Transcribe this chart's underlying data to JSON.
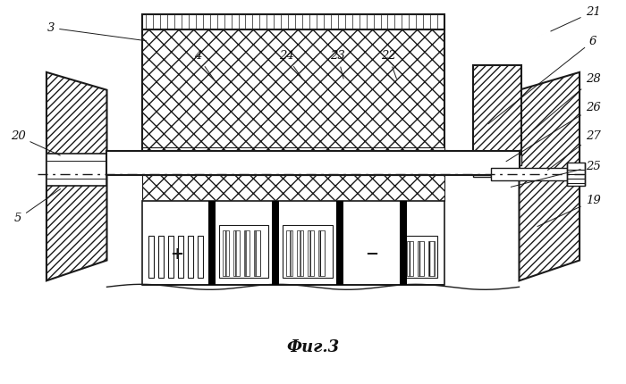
{
  "title": "Фиг.3",
  "bg_color": "#ffffff",
  "lc": "#1a1a1a",
  "labels": [
    [
      "3",
      55,
      400,
      165,
      385
    ],
    [
      "21",
      665,
      418,
      615,
      395
    ],
    [
      "6",
      665,
      385,
      545,
      290
    ],
    [
      "20",
      18,
      278,
      68,
      255
    ],
    [
      "28",
      665,
      342,
      590,
      278
    ],
    [
      "26",
      665,
      310,
      565,
      248
    ],
    [
      "27",
      665,
      278,
      612,
      238
    ],
    [
      "5",
      18,
      185,
      68,
      220
    ],
    [
      "25",
      665,
      244,
      570,
      220
    ],
    [
      "19",
      665,
      205,
      600,
      175
    ],
    [
      "4",
      220,
      368,
      240,
      340
    ],
    [
      "24",
      320,
      368,
      340,
      340
    ],
    [
      "23",
      378,
      368,
      385,
      340
    ],
    [
      "22",
      435,
      368,
      445,
      340
    ]
  ]
}
